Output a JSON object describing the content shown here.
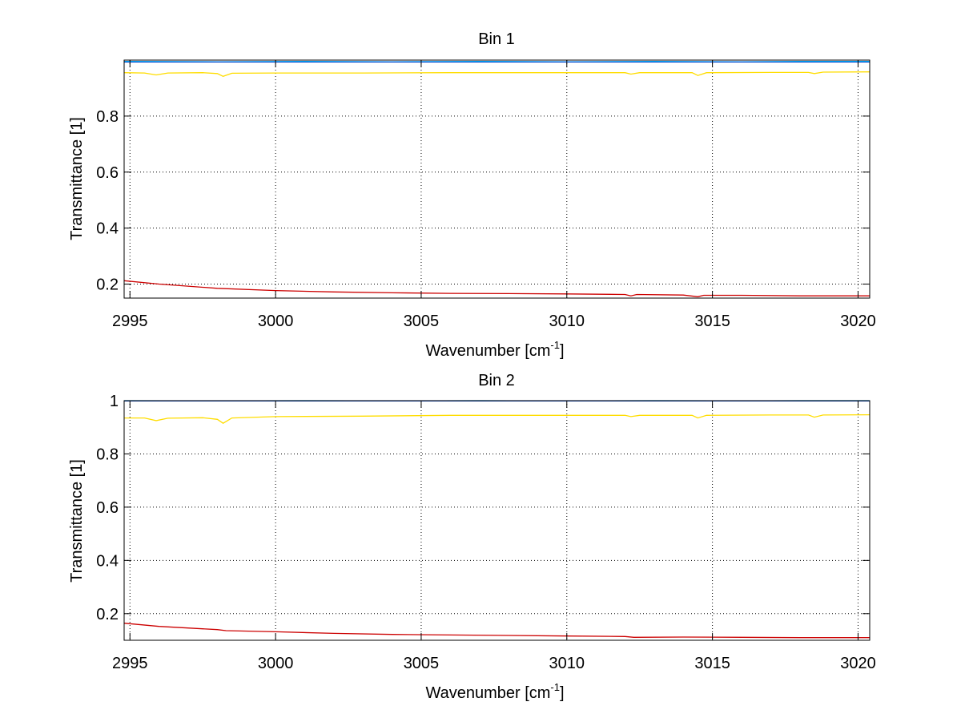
{
  "chart_data": [
    {
      "type": "line",
      "title": "Bin 1",
      "xlabel_main": "Wavenumber [cm",
      "xlabel_sup": "-1",
      "xlabel_close": "]",
      "ylabel": "Transmittance [1]",
      "xlim": [
        2994.8,
        3020.4
      ],
      "ylim": [
        0.15,
        1.0
      ],
      "xticks": [
        2995,
        3000,
        3005,
        3010,
        3015,
        3020
      ],
      "xtick_labels": [
        "2995",
        "3000",
        "3005",
        "3010",
        "3015",
        "3020"
      ],
      "yticks": [
        0.2,
        0.4,
        0.6,
        0.8
      ],
      "ytick_labels": [
        "0.2",
        "0.4",
        "0.6",
        "0.8"
      ],
      "grid": true,
      "grid_style": "dotted",
      "series": [
        {
          "color": "#00ccff",
          "x": [
            2994.8,
            2998,
            3001,
            3004,
            3007,
            3010,
            3013,
            3016,
            3018,
            3020.4
          ],
          "y": [
            0.995,
            0.994,
            0.995,
            0.994,
            0.995,
            0.994,
            0.995,
            0.994,
            0.995,
            0.995
          ]
        },
        {
          "color": "#0044cc",
          "x": [
            2994.8,
            2998,
            3001,
            3004,
            3007,
            3010,
            3013,
            3016,
            3018,
            3020.4
          ],
          "y": [
            0.993,
            0.993,
            0.993,
            0.993,
            0.993,
            0.993,
            0.993,
            0.993,
            0.993,
            0.993
          ]
        },
        {
          "color": "#ffdd00",
          "x": [
            2994.8,
            2995.5,
            2995.9,
            2996.3,
            2997.5,
            2998.0,
            2998.2,
            2998.5,
            3000,
            3003,
            3006,
            3009,
            3012.0,
            3012.2,
            3012.5,
            3014.3,
            3014.5,
            3014.8,
            3017,
            3018.3,
            3018.5,
            3018.8,
            3020.4
          ],
          "y": [
            0.955,
            0.954,
            0.947,
            0.954,
            0.955,
            0.952,
            0.942,
            0.953,
            0.954,
            0.954,
            0.955,
            0.955,
            0.955,
            0.95,
            0.955,
            0.955,
            0.945,
            0.955,
            0.956,
            0.956,
            0.952,
            0.957,
            0.958
          ]
        },
        {
          "color": "#cc0000",
          "x": [
            2994.8,
            2996,
            2998,
            3000,
            3002,
            3004,
            3006,
            3008,
            3010,
            3012,
            3012.2,
            3012.4,
            3014,
            3014.5,
            3014.7,
            3016,
            3018,
            3020.4
          ],
          "y": [
            0.212,
            0.2,
            0.185,
            0.177,
            0.172,
            0.169,
            0.167,
            0.166,
            0.165,
            0.163,
            0.158,
            0.163,
            0.161,
            0.155,
            0.16,
            0.16,
            0.158,
            0.158
          ]
        }
      ]
    },
    {
      "type": "line",
      "title": "Bin 2",
      "xlabel_main": "Wavenumber [cm",
      "xlabel_sup": "-1",
      "xlabel_close": "]",
      "ylabel": "Transmittance [1]",
      "xlim": [
        2994.8,
        3020.4
      ],
      "ylim": [
        0.1,
        1.0
      ],
      "xticks": [
        2995,
        3000,
        3005,
        3010,
        3015,
        3020
      ],
      "xtick_labels": [
        "2995",
        "3000",
        "3005",
        "3010",
        "3015",
        "3020"
      ],
      "yticks": [
        0.2,
        0.4,
        0.6,
        0.8,
        1.0
      ],
      "ytick_labels": [
        "0.2",
        "0.4",
        "0.6",
        "0.8",
        "1"
      ],
      "grid": true,
      "grid_style": "dotted",
      "series": [
        {
          "color": "#00ccff",
          "x": [
            2994.8,
            2998,
            3001,
            3004,
            3007,
            3010,
            3013,
            3016,
            3018,
            3020.4
          ],
          "y": [
            1.0,
            0.999,
            1.0,
            0.999,
            1.0,
            0.999,
            1.0,
            0.999,
            1.0,
            1.0
          ]
        },
        {
          "color": "#0044cc",
          "x": [
            2994.8,
            2998,
            3001,
            3004,
            3007,
            3010,
            3013,
            3016,
            3018,
            3020.4
          ],
          "y": [
            0.999,
            0.999,
            0.999,
            0.999,
            0.999,
            0.999,
            0.999,
            0.999,
            0.999,
            0.999
          ]
        },
        {
          "color": "#ffdd00",
          "x": [
            2994.8,
            2995.5,
            2995.9,
            2996.3,
            2997.5,
            2998.0,
            2998.2,
            2998.5,
            3000,
            3003,
            3006,
            3009,
            3012.0,
            3012.2,
            3012.5,
            3014.3,
            3014.5,
            3014.8,
            3017,
            3018.3,
            3018.5,
            3018.8,
            3020.4
          ],
          "y": [
            0.935,
            0.935,
            0.925,
            0.934,
            0.936,
            0.93,
            0.915,
            0.935,
            0.94,
            0.942,
            0.945,
            0.945,
            0.945,
            0.94,
            0.945,
            0.945,
            0.935,
            0.945,
            0.946,
            0.946,
            0.938,
            0.946,
            0.947
          ]
        },
        {
          "color": "#cc0000",
          "x": [
            2994.8,
            2996,
            2998,
            2998.3,
            3000,
            3002,
            3004,
            3006,
            3008,
            3010,
            3012,
            3012.3,
            3014,
            3016,
            3018,
            3020.4
          ],
          "y": [
            0.164,
            0.152,
            0.14,
            0.136,
            0.132,
            0.126,
            0.122,
            0.12,
            0.118,
            0.116,
            0.114,
            0.111,
            0.112,
            0.111,
            0.11,
            0.11
          ]
        }
      ]
    }
  ]
}
